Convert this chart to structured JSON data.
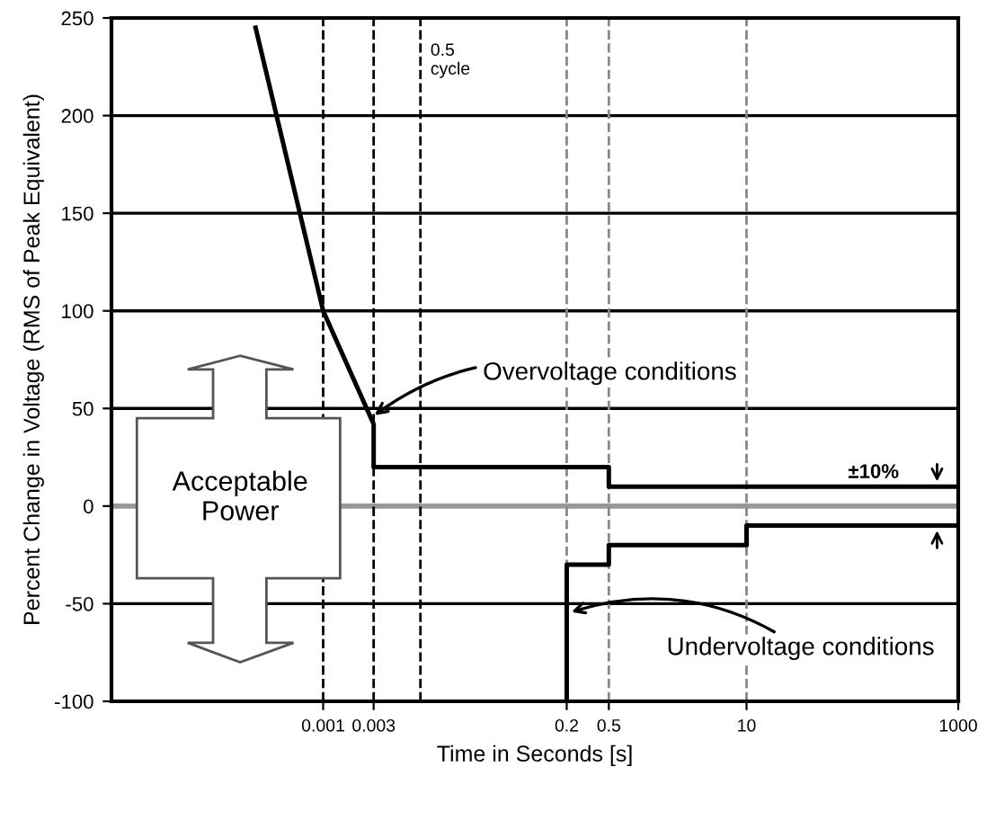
{
  "chart_data": {
    "type": "line",
    "xlabel": "Time in Seconds [s]",
    "ylabel": "Percent Change in Voltage (RMS of Peak Equivalent)",
    "xlim": [
      1e-05,
      1000
    ],
    "ylim": [
      -100,
      250
    ],
    "log": "x",
    "xticks": [
      0.001,
      0.003,
      0.2,
      0.5,
      10,
      1000
    ],
    "yticks": [
      -100,
      -50,
      0,
      50,
      100,
      150,
      200,
      250
    ],
    "grid": "y",
    "legend": false,
    "marker": "none",
    "line_style": "solid",
    "series": [
      {
        "color": "#000000",
        "x": [
          0.00023,
          0.001,
          0.003,
          0.003,
          0.5,
          0.5,
          1000
        ],
        "values": [
          245,
          100,
          42,
          20,
          20,
          10,
          10
        ]
      },
      {
        "color": "#000000",
        "x": [
          0.2,
          0.2,
          0.5,
          0.5,
          10,
          10,
          1000
        ],
        "values": [
          -100,
          -30,
          -30,
          -20,
          -20,
          -10,
          -10
        ]
      }
    ],
    "ref_lines": [
      {
        "axis": "y",
        "value": 0,
        "color": "#999999",
        "line_style": "solid"
      },
      {
        "axis": "x",
        "value": 0.001,
        "color": "#000000",
        "line_style": "dashed"
      },
      {
        "axis": "x",
        "value": 0.003,
        "color": "#000000",
        "line_style": "dashed"
      },
      {
        "axis": "x",
        "value": 0.0083,
        "label": "0.5\ncycle",
        "color": "#000000",
        "line_style": "dashed"
      },
      {
        "axis": "x",
        "value": 0.2,
        "color": "#888888",
        "line_style": "dashed"
      },
      {
        "axis": "x",
        "value": 0.5,
        "color": "#888888",
        "line_style": "dashed"
      },
      {
        "axis": "x",
        "value": 10,
        "color": "#888888",
        "line_style": "dashed"
      }
    ],
    "annotations": [
      {
        "text": "Overvoltage conditions",
        "x": 0.0028,
        "y": 45
      },
      {
        "text": "Undervoltage conditions",
        "x": 0.2,
        "y": -55
      },
      "Acceptable\nPower",
      "±10%"
    ]
  }
}
